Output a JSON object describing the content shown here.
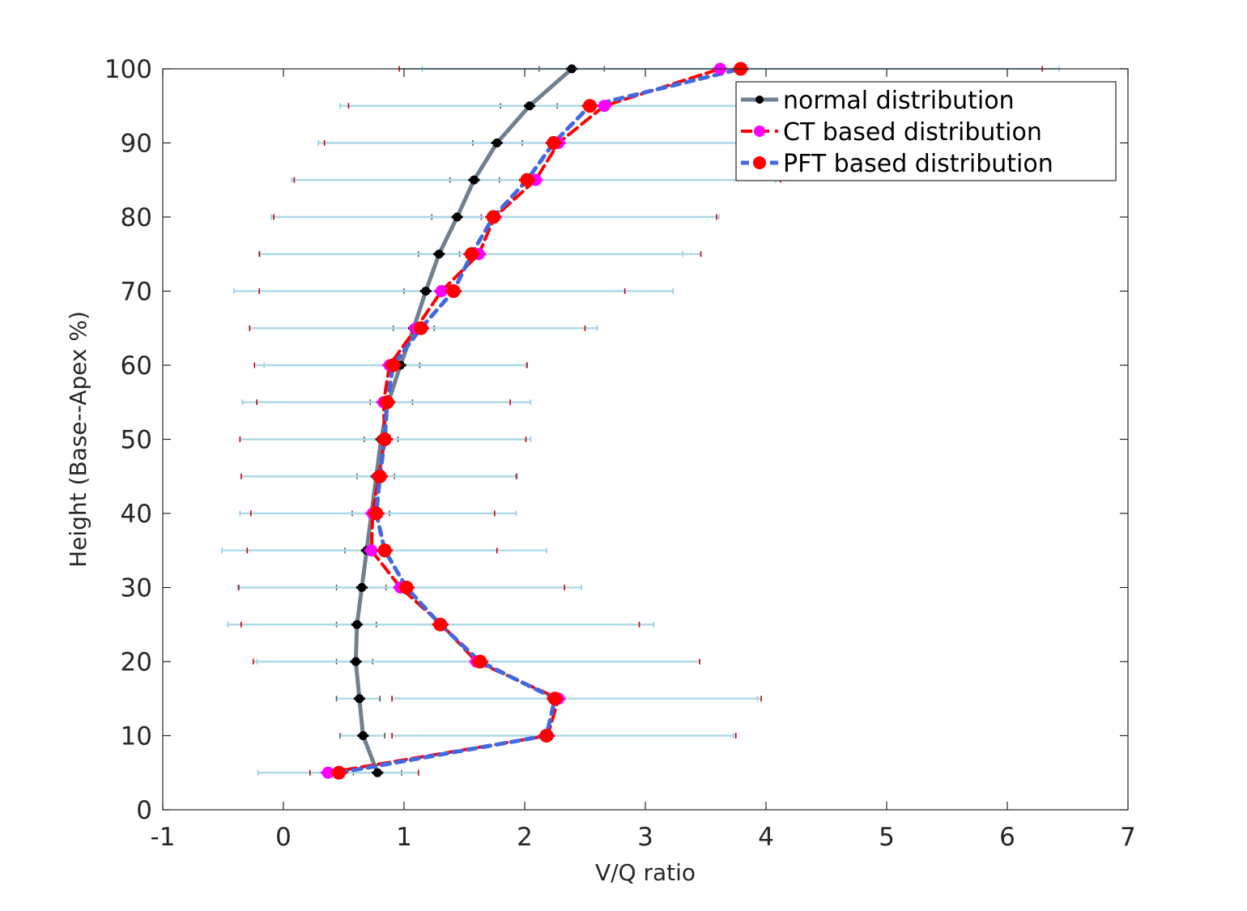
{
  "chart_data": {
    "type": "line",
    "xlabel": "V/Q ratio",
    "ylabel": "Height (Base--Apex %)",
    "xlim": [
      -1,
      7
    ],
    "ylim": [
      0,
      100
    ],
    "xticks": [
      -1,
      0,
      1,
      2,
      3,
      4,
      5,
      6,
      7
    ],
    "yticks": [
      0,
      10,
      20,
      30,
      40,
      50,
      60,
      70,
      80,
      90,
      100
    ],
    "grid": false,
    "legend_position": "top-right",
    "errorbar_color": "#add8e6",
    "y": [
      5,
      10,
      15,
      20,
      25,
      30,
      35,
      40,
      45,
      50,
      55,
      60,
      65,
      70,
      75,
      80,
      85,
      90,
      95,
      100
    ],
    "series": [
      {
        "name": "normal distribution",
        "color": "#708090",
        "marker_color": "#000000",
        "line_style": "solid",
        "x": [
          0.78,
          0.66,
          0.63,
          0.6,
          0.61,
          0.65,
          0.69,
          0.73,
          0.77,
          0.81,
          0.87,
          0.97,
          1.08,
          1.18,
          1.29,
          1.44,
          1.58,
          1.77,
          2.04,
          2.39
        ],
        "err_low": [
          0.58,
          0.47,
          0.44,
          0.44,
          0.44,
          0.44,
          0.51,
          0.57,
          0.61,
          0.67,
          0.72,
          0.85,
          0.91,
          1.0,
          1.12,
          1.23,
          1.38,
          1.57,
          1.8,
          2.12
        ],
        "err_high": [
          0.98,
          0.84,
          0.8,
          0.74,
          0.77,
          0.85,
          0.86,
          0.88,
          0.92,
          0.95,
          1.07,
          1.13,
          1.25,
          1.34,
          1.46,
          1.64,
          1.79,
          1.98,
          2.27,
          2.66
        ]
      },
      {
        "name": "CT based distribution",
        "color": "#ff0000",
        "marker_color": "#ff00ff",
        "line_style": "dash",
        "x": [
          0.37,
          2.19,
          2.28,
          1.6,
          1.31,
          0.97,
          0.73,
          0.74,
          0.79,
          0.84,
          0.83,
          0.88,
          1.1,
          1.31,
          1.62,
          1.75,
          2.09,
          2.28,
          2.66,
          3.62
        ],
        "err_low": [
          -0.21,
          0.9,
          0.9,
          -0.22,
          -0.46,
          -0.38,
          -0.51,
          -0.36,
          -0.35,
          -0.36,
          -0.34,
          -0.16,
          -0.28,
          -0.41,
          -0.19,
          -0.1,
          0.07,
          0.29,
          0.47,
          1.15
        ],
        "err_high": [
          1.12,
          3.73,
          3.93,
          3.45,
          3.07,
          2.47,
          2.18,
          1.93,
          1.94,
          2.05,
          2.05,
          2.01,
          2.6,
          3.23,
          3.31,
          3.61,
          4.08,
          4.21,
          4.58,
          6.43
        ]
      },
      {
        "name": "PFT based distribution",
        "color": "#4169e1",
        "marker_color": "#ff0000",
        "line_style": "dash",
        "x": [
          0.46,
          2.18,
          2.25,
          1.63,
          1.3,
          1.02,
          0.84,
          0.77,
          0.8,
          0.84,
          0.86,
          0.91,
          1.14,
          1.41,
          1.56,
          1.74,
          2.02,
          2.24,
          2.54,
          3.79
        ],
        "err_low": [
          0.22,
          0.9,
          0.9,
          -0.25,
          -0.35,
          -0.37,
          -0.3,
          -0.27,
          -0.35,
          -0.36,
          -0.22,
          -0.24,
          -0.28,
          -0.2,
          -0.2,
          -0.08,
          0.09,
          0.34,
          0.54,
          0.96
        ],
        "err_high": [
          1.12,
          3.75,
          3.96,
          3.45,
          2.95,
          2.33,
          1.77,
          1.75,
          1.93,
          2.01,
          1.88,
          2.02,
          2.5,
          2.83,
          3.46,
          3.59,
          4.12,
          4.05,
          4.35,
          6.29
        ]
      }
    ]
  }
}
